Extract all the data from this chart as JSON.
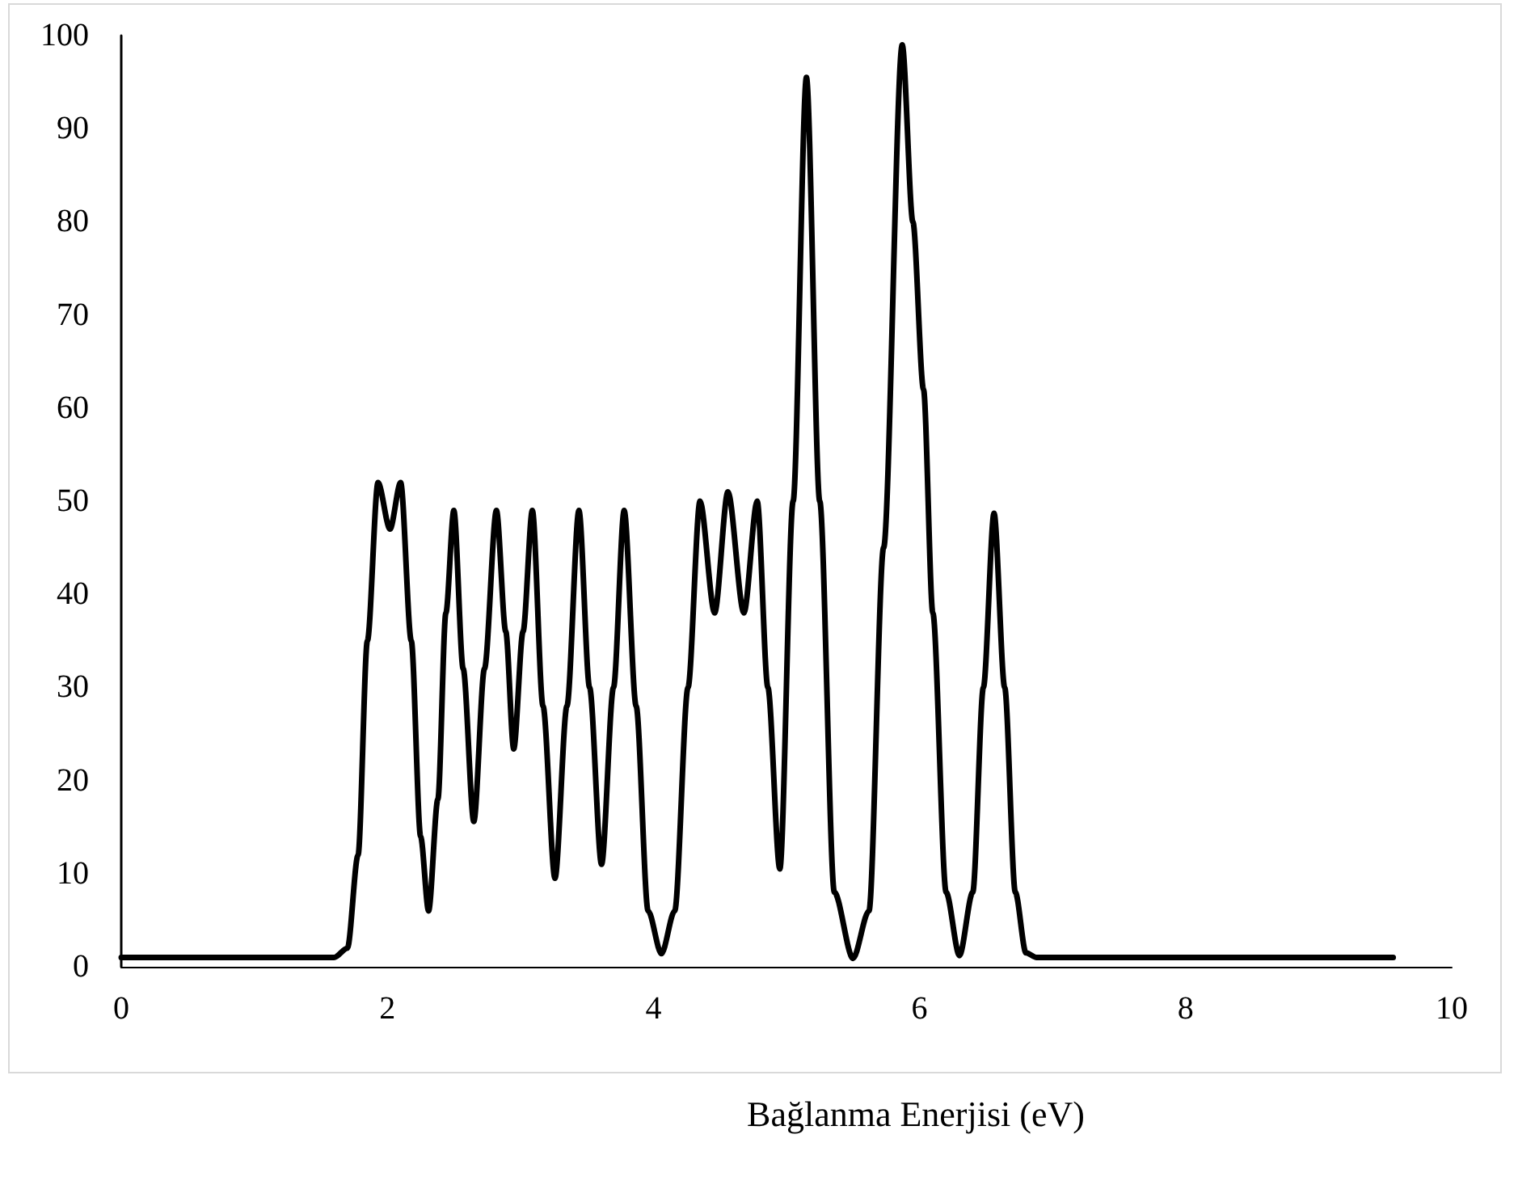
{
  "chart_data": {
    "type": "line",
    "xlabel": "Bağlanma Enerjisi (eV)",
    "x": [
      0,
      1.6,
      1.7,
      1.78,
      1.85,
      1.93,
      2.02,
      2.1,
      2.18,
      2.25,
      2.31,
      2.38,
      2.44,
      2.5,
      2.57,
      2.65,
      2.73,
      2.82,
      2.89,
      2.95,
      3.02,
      3.09,
      3.17,
      3.26,
      3.35,
      3.44,
      3.52,
      3.61,
      3.7,
      3.78,
      3.87,
      3.96,
      4.06,
      4.16,
      4.26,
      4.35,
      4.46,
      4.56,
      4.68,
      4.78,
      4.86,
      4.95,
      5.05,
      5.15,
      5.25,
      5.36,
      5.5,
      5.62,
      5.73,
      5.87,
      5.95,
      6.03,
      6.1,
      6.2,
      6.3,
      6.4,
      6.48,
      6.56,
      6.64,
      6.72,
      6.8,
      6.88,
      9.56
    ],
    "series": [
      {
        "color": "#000000",
        "values": [
          1,
          1,
          2,
          12,
          35,
          52,
          47,
          52,
          35,
          14,
          6,
          18,
          38,
          49,
          32,
          15.6,
          32,
          49,
          36,
          23.4,
          36,
          49,
          28,
          9.5,
          28,
          49,
          30,
          11,
          30,
          49,
          28,
          6,
          1.4,
          6,
          30,
          50,
          38,
          51,
          38,
          50,
          30,
          10.5,
          50,
          95.5,
          50,
          8,
          0.9,
          6,
          45,
          99,
          80,
          62,
          38,
          8,
          1.2,
          8,
          30,
          48.7,
          30,
          8,
          1.5,
          1,
          1
        ]
      }
    ],
    "xlim": [
      0,
      10
    ],
    "xticks": [
      0,
      2,
      4,
      6,
      8,
      10
    ],
    "ylim": [
      0,
      100
    ],
    "yticks": [
      0,
      10,
      20,
      30,
      40,
      50,
      60,
      70,
      80,
      90,
      100
    ],
    "grid": false,
    "marker": "none",
    "line_style": "solid"
  }
}
